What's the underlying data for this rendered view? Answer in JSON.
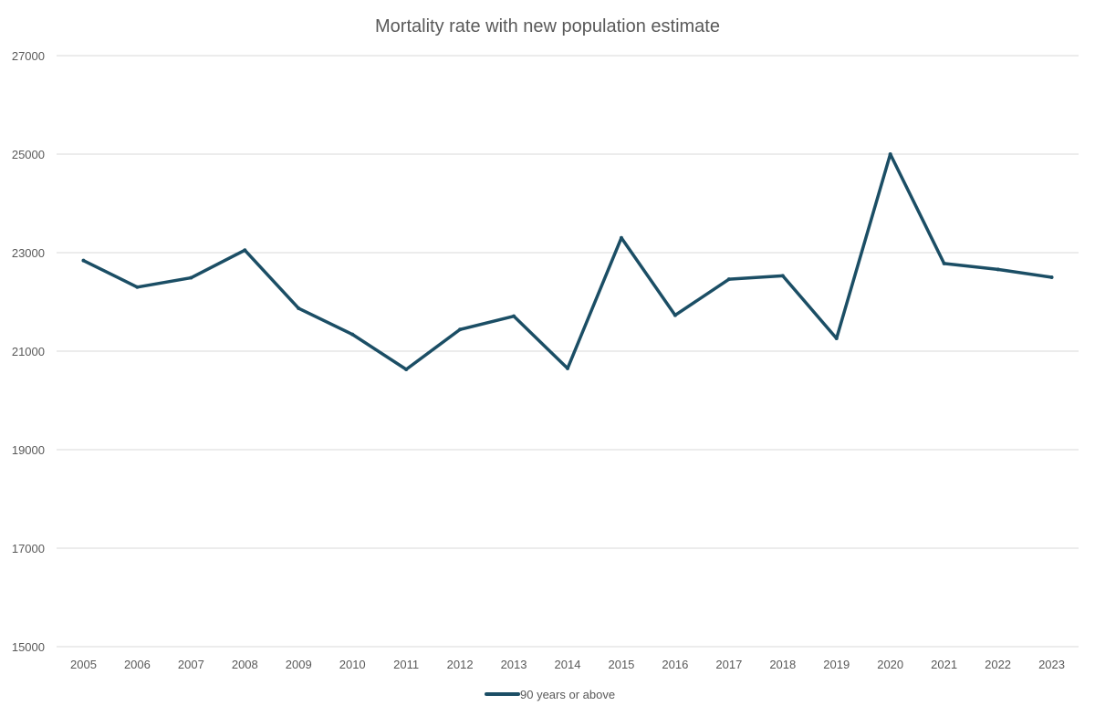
{
  "chart_data": {
    "type": "line",
    "title": "Mortality rate with new population estimate",
    "xlabel": "",
    "ylabel": "",
    "ylim": [
      15000,
      27000
    ],
    "yticks": [
      15000,
      17000,
      19000,
      21000,
      23000,
      25000,
      27000
    ],
    "grid": true,
    "legend_position": "bottom",
    "categories": [
      "2005",
      "2006",
      "2007",
      "2008",
      "2009",
      "2010",
      "2011",
      "2012",
      "2013",
      "2014",
      "2015",
      "2016",
      "2017",
      "2018",
      "2019",
      "2020",
      "2021",
      "2022",
      "2023"
    ],
    "series": [
      {
        "name": "90 years or above",
        "color": "#1b4e65",
        "values": [
          22840,
          22300,
          22490,
          23050,
          21870,
          21340,
          20630,
          21440,
          21710,
          20650,
          23300,
          21730,
          22460,
          22530,
          21260,
          25000,
          22780,
          22660,
          22500
        ]
      }
    ]
  }
}
